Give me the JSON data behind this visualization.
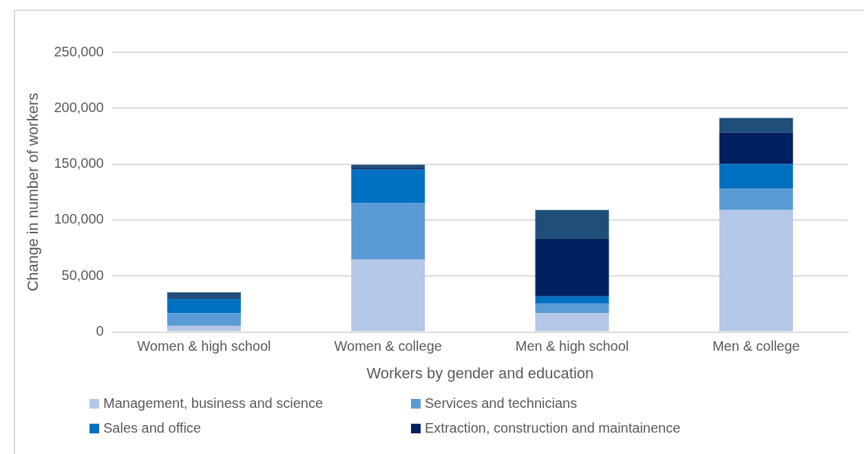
{
  "chart_data": {
    "type": "bar",
    "stacked": true,
    "xlabel": "Workers by gender and education",
    "ylabel": "Change in number of workers",
    "categories": [
      "Women & high school",
      "Women & college",
      "Men & high school",
      "Men & college"
    ],
    "series": [
      {
        "name": "Management, business and science",
        "color": "#b4c7e7",
        "values": [
          5500,
          65000,
          16800,
          109100
        ]
      },
      {
        "name": "Services and technicians",
        "color": "#5b9bd5",
        "values": [
          11100,
          50000,
          8500,
          18800
        ]
      },
      {
        "name": "Sales and office",
        "color": "#0070c0",
        "values": [
          12900,
          30200,
          6600,
          22200
        ]
      },
      {
        "name": "Extraction, construction and maintainence",
        "color": "#002060",
        "values": [
          1100,
          1300,
          51700,
          28100
        ]
      },
      {
        "color": "#1f4e79",
        "values": [
          4800,
          2900,
          25500,
          13100
        ]
      }
    ],
    "ylim": [
      0,
      250000
    ],
    "yticks": [
      {
        "value": 0,
        "label": "0"
      },
      {
        "value": 50000,
        "label": "50,000"
      },
      {
        "value": 100000,
        "label": "100,000"
      },
      {
        "value": 150000,
        "label": "150,000"
      },
      {
        "value": 200000,
        "label": "200,000"
      },
      {
        "value": 250000,
        "label": "250,000"
      }
    ],
    "grid": "y",
    "legend": "bottom"
  }
}
